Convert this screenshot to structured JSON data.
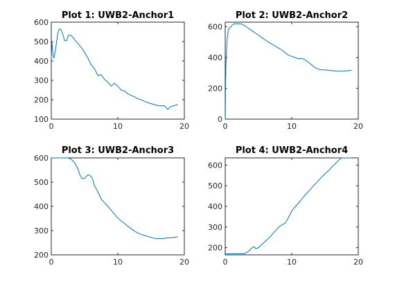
{
  "figure": {
    "background": "#ffffff",
    "line_color": "#0072bd",
    "axis_color": "#262626"
  },
  "chart_data": [
    {
      "type": "line",
      "title": "Plot 1: UWB2-Anchor1",
      "xlabel": "",
      "ylabel": "",
      "xlim": [
        0,
        20
      ],
      "ylim": [
        100,
        600
      ],
      "xticks": [
        0,
        10,
        20
      ],
      "yticks": [
        100,
        200,
        300,
        400,
        500,
        600
      ],
      "grid": false,
      "series": [
        {
          "x": [
            0,
            0.1,
            0.25,
            0.4,
            0.6,
            0.8,
            1.0,
            1.2,
            1.5,
            1.8,
            2.0,
            2.3,
            2.6,
            3.0,
            3.3,
            3.6,
            4.0,
            4.5,
            5.0,
            5.5,
            6.0,
            6.5,
            7.0,
            7.5,
            8.0,
            8.5,
            9.0,
            9.5,
            10.0,
            10.5,
            11.0,
            11.5,
            12.0,
            12.5,
            13.0,
            13.5,
            14.0,
            14.5,
            15.0,
            15.5,
            16.0,
            16.5,
            17.0,
            17.5,
            18.0,
            18.5,
            19.0
          ],
          "y": [
            415,
            495,
            430,
            415,
            450,
            500,
            545,
            565,
            560,
            530,
            505,
            505,
            535,
            530,
            520,
            505,
            490,
            470,
            445,
            415,
            380,
            360,
            325,
            330,
            305,
            290,
            270,
            285,
            270,
            250,
            245,
            230,
            222,
            215,
            205,
            200,
            192,
            185,
            180,
            175,
            170,
            168,
            170,
            150,
            165,
            170,
            175
          ]
        }
      ]
    },
    {
      "type": "line",
      "title": "Plot 2: UWB2-Anchor2",
      "xlabel": "",
      "ylabel": "",
      "xlim": [
        0,
        20
      ],
      "ylim": [
        0,
        630
      ],
      "xticks": [
        0,
        10,
        20
      ],
      "yticks": [
        0,
        200,
        400,
        600
      ],
      "grid": false,
      "series": [
        {
          "x": [
            0,
            0.02,
            0.05,
            0.1,
            0.2,
            0.3,
            0.45,
            0.6,
            0.8,
            1.0,
            1.2,
            1.4,
            2.0,
            2.5,
            3.0,
            3.5,
            4.0,
            4.5,
            5.0,
            5.5,
            6.0,
            6.5,
            7.0,
            7.5,
            8.0,
            8.5,
            9.0,
            9.5,
            10.0,
            10.5,
            11.0,
            11.5,
            12.0,
            12.5,
            13.0,
            13.5,
            14.0,
            14.5,
            15.0,
            16.0,
            17.0,
            18.0,
            19.0
          ],
          "y": [
            0,
            30,
            210,
            350,
            450,
            525,
            575,
            590,
            598,
            608,
            615,
            620,
            620,
            618,
            605,
            590,
            575,
            560,
            545,
            530,
            515,
            500,
            488,
            475,
            462,
            450,
            432,
            415,
            408,
            400,
            392,
            395,
            385,
            370,
            352,
            335,
            325,
            320,
            320,
            315,
            312,
            312,
            318
          ]
        }
      ]
    },
    {
      "type": "line",
      "title": "Plot 3: UWB2-Anchor3",
      "xlabel": "",
      "ylabel": "",
      "xlim": [
        0,
        20
      ],
      "ylim": [
        200,
        600
      ],
      "xticks": [
        0,
        10,
        20
      ],
      "yticks": [
        200,
        300,
        400,
        500,
        600
      ],
      "grid": false,
      "series": [
        {
          "x": [
            0,
            0.5,
            1.0,
            1.5,
            2.0,
            2.5,
            3.0,
            3.5,
            4.0,
            4.3,
            4.6,
            5.0,
            5.5,
            5.8,
            6.2,
            6.5,
            7.0,
            7.5,
            8.0,
            8.5,
            9.0,
            9.5,
            10.0,
            10.5,
            11.0,
            11.5,
            12.0,
            12.5,
            13.0,
            13.5,
            14.0,
            14.5,
            15.0,
            15.5,
            16.0,
            16.5,
            17.0,
            17.5,
            18.0,
            18.5,
            19.0
          ],
          "y": [
            600,
            600,
            600,
            600,
            600,
            600,
            595,
            580,
            555,
            530,
            515,
            515,
            530,
            528,
            515,
            485,
            460,
            430,
            415,
            400,
            385,
            368,
            352,
            340,
            330,
            318,
            308,
            298,
            290,
            285,
            280,
            276,
            272,
            268,
            267,
            267,
            268,
            270,
            270,
            272,
            275
          ]
        }
      ]
    },
    {
      "type": "line",
      "title": "Plot 4: UWB2-Anchor4",
      "xlabel": "",
      "ylabel": "",
      "xlim": [
        0,
        20
      ],
      "ylim": [
        165,
        635
      ],
      "xticks": [
        0,
        10,
        20
      ],
      "yticks": [
        200,
        300,
        400,
        500,
        600
      ],
      "grid": false,
      "series": [
        {
          "x": [
            0,
            1.0,
            2.0,
            2.8,
            3.0,
            3.5,
            4.0,
            4.3,
            4.6,
            5.0,
            5.5,
            6.0,
            6.5,
            7.0,
            7.5,
            8.0,
            8.5,
            9.0,
            9.5,
            10.0,
            10.5,
            11.0,
            11.5,
            12.0,
            12.5,
            13.0,
            13.5,
            14.0,
            14.5,
            15.0,
            15.5,
            16.0,
            16.5,
            17.0,
            17.5,
            18.0,
            18.5,
            19.0
          ],
          "y": [
            170,
            170,
            170,
            170,
            172,
            182,
            198,
            205,
            195,
            200,
            215,
            230,
            245,
            262,
            280,
            298,
            310,
            318,
            345,
            378,
            398,
            415,
            435,
            455,
            472,
            490,
            508,
            525,
            542,
            558,
            572,
            590,
            605,
            622,
            635,
            635,
            635,
            635
          ]
        }
      ]
    }
  ]
}
